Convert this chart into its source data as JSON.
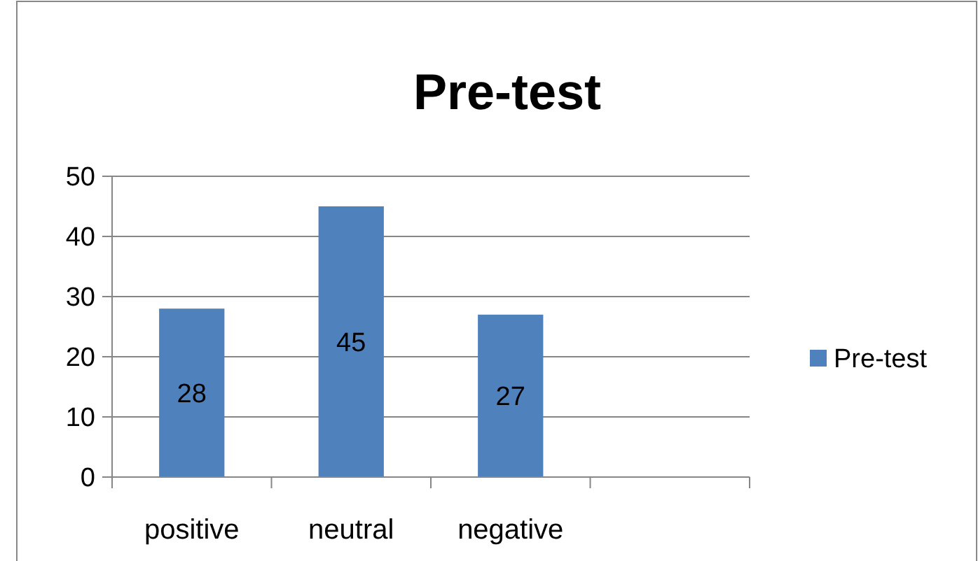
{
  "chart_data": {
    "type": "bar",
    "title": "Pre-test",
    "categories": [
      "positive",
      "neutral",
      "negative",
      null
    ],
    "series": [
      {
        "name": "Pre-test",
        "color": "#4f81bd",
        "values": [
          28,
          45,
          27,
          null
        ]
      }
    ],
    "ylim": [
      0,
      50
    ],
    "yticks": [
      0,
      10,
      20,
      30,
      40,
      50
    ],
    "grid": "y",
    "legend": "right",
    "data_labels": true
  }
}
